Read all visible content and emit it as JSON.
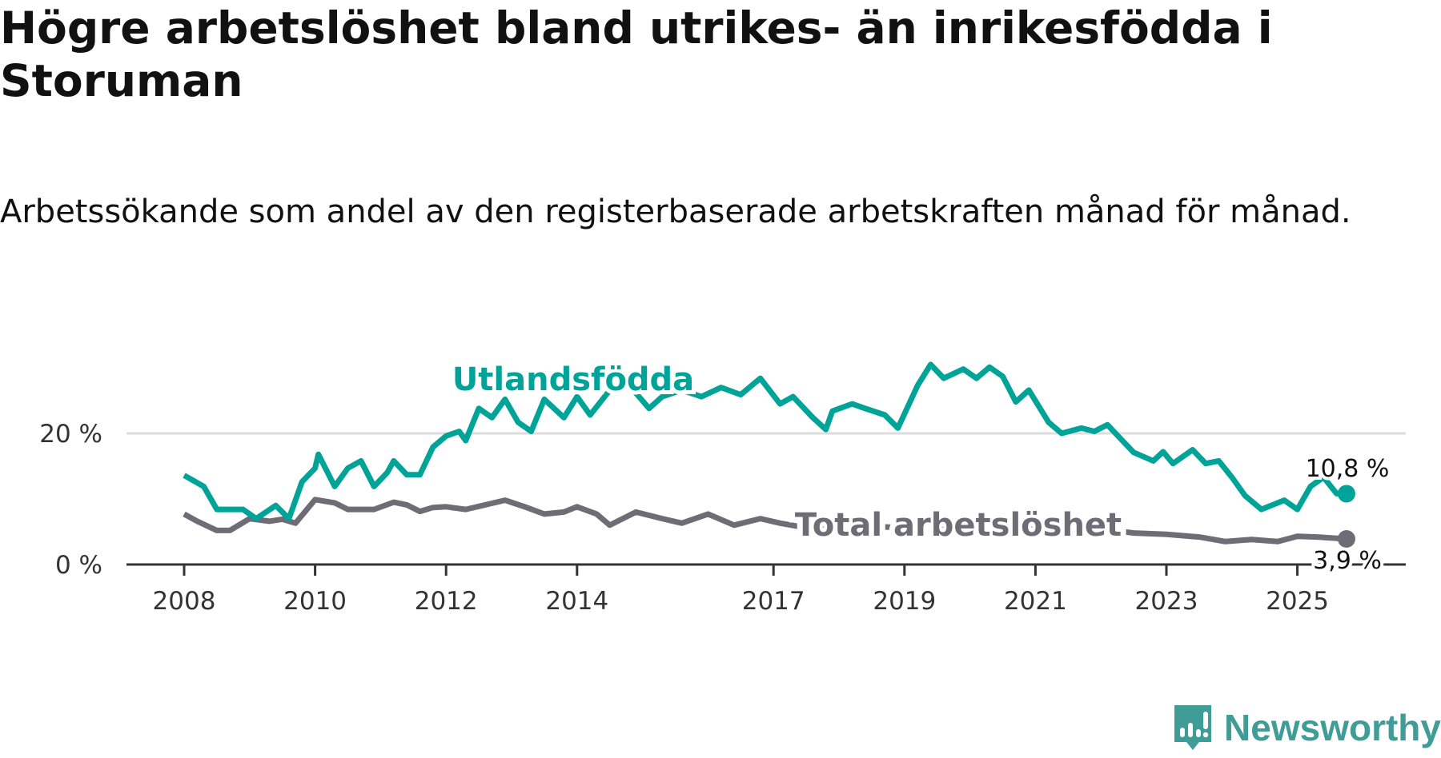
{
  "title": "Högre arbetslöshet bland utrikes- än inrikesfödda i Storuman",
  "subtitle": "Arbetssökande som andel av den registerbaserade arbetskraften månad för månad.",
  "logo_text": "Newsworthy",
  "chart_data": {
    "type": "line",
    "ylim": [
      0,
      30
    ],
    "yticks": [
      {
        "value": 0,
        "label": "0 %"
      },
      {
        "value": 20,
        "label": "20 %"
      }
    ],
    "xticks": [
      {
        "value": 2008,
        "label": "2008"
      },
      {
        "value": 2010,
        "label": "2010"
      },
      {
        "value": 2012,
        "label": "2012"
      },
      {
        "value": 2014,
        "label": "2014"
      },
      {
        "value": 2017,
        "label": "2017"
      },
      {
        "value": 2019,
        "label": "2019"
      },
      {
        "value": 2021,
        "label": "2021"
      },
      {
        "value": 2023,
        "label": "2023"
      },
      {
        "value": 2025,
        "label": "2025"
      }
    ],
    "grid": true,
    "series": [
      {
        "name": "Utlandsfödda",
        "color": "#00a398",
        "end_label": "10,8 %",
        "x": [
          2008.0,
          2008.3,
          2008.5,
          2008.9,
          2009.1,
          2009.4,
          2009.6,
          2009.8,
          2010.0,
          2010.05,
          2010.3,
          2010.5,
          2010.7,
          2010.9,
          2011.1,
          2011.2,
          2011.4,
          2011.6,
          2011.8,
          2012.0,
          2012.2,
          2012.3,
          2012.5,
          2012.7,
          2012.9,
          2013.1,
          2013.3,
          2013.5,
          2013.8,
          2014.0,
          2014.2,
          2014.5,
          2014.8,
          2015.1,
          2015.3,
          2015.6,
          2015.9,
          2016.2,
          2016.5,
          2016.8,
          2017.1,
          2017.3,
          2017.6,
          2017.8,
          2017.9,
          2018.2,
          2018.4,
          2018.7,
          2018.9,
          2019.2,
          2019.4,
          2019.6,
          2019.9,
          2020.1,
          2020.3,
          2020.5,
          2020.7,
          2020.9,
          2021.2,
          2021.4,
          2021.7,
          2021.9,
          2022.1,
          2022.3,
          2022.5,
          2022.8,
          2022.95,
          2023.1,
          2023.4,
          2023.6,
          2023.8,
          2024.0,
          2024.2,
          2024.45,
          2024.8,
          2025.0,
          2025.2,
          2025.4,
          2025.6,
          2025.75
        ],
        "y": [
          13.6,
          11.9,
          8.4,
          8.4,
          7.0,
          9.0,
          7.0,
          12.6,
          14.7,
          16.8,
          11.9,
          14.7,
          15.8,
          11.9,
          14.0,
          15.8,
          13.7,
          13.7,
          17.9,
          19.6,
          20.3,
          18.9,
          23.8,
          22.4,
          25.2,
          21.7,
          20.3,
          25.2,
          22.4,
          25.6,
          22.8,
          26.6,
          27.3,
          23.8,
          25.6,
          26.6,
          25.6,
          27.0,
          25.9,
          28.4,
          24.5,
          25.6,
          22.4,
          20.6,
          23.4,
          24.5,
          23.8,
          22.8,
          20.8,
          27.3,
          30.5,
          28.4,
          29.8,
          28.4,
          30.1,
          28.7,
          24.8,
          26.6,
          21.7,
          20.0,
          20.8,
          20.3,
          21.3,
          19.2,
          17.1,
          15.8,
          17.2,
          15.4,
          17.5,
          15.4,
          15.8,
          13.3,
          10.5,
          8.4,
          9.8,
          8.4,
          11.9,
          13.3,
          10.8,
          10.8
        ]
      },
      {
        "name": "Total arbetslöshet",
        "color": "#6e6c75",
        "end_label": "3,9 %",
        "x": [
          2008.0,
          2008.2,
          2008.5,
          2008.7,
          2009.0,
          2009.3,
          2009.5,
          2009.7,
          2010.0,
          2010.3,
          2010.5,
          2010.9,
          2011.2,
          2011.4,
          2011.6,
          2011.8,
          2012.0,
          2012.3,
          2012.6,
          2012.9,
          2013.2,
          2013.5,
          2013.8,
          2014.0,
          2014.3,
          2014.5,
          2014.9,
          2015.3,
          2015.6,
          2016.0,
          2016.4,
          2016.8,
          2017.1,
          2017.5,
          2018.0,
          2018.5,
          2019.0,
          2019.5,
          2020.0,
          2020.5,
          2021.0,
          2021.5,
          2022.0,
          2022.2,
          2022.5,
          2023.0,
          2023.5,
          2023.9,
          2024.3,
          2024.7,
          2025.0,
          2025.3,
          2025.75
        ],
        "y": [
          7.7,
          6.6,
          5.2,
          5.2,
          7.0,
          6.6,
          6.9,
          6.3,
          9.9,
          9.4,
          8.4,
          8.4,
          9.5,
          9.1,
          8.1,
          8.7,
          8.8,
          8.4,
          9.1,
          9.8,
          8.8,
          7.7,
          8.0,
          8.8,
          7.7,
          6.0,
          8.0,
          7.0,
          6.3,
          7.7,
          6.0,
          7.0,
          6.3,
          5.6,
          5.5,
          5.8,
          5.6,
          5.3,
          5.4,
          5.6,
          5.5,
          5.3,
          5.3,
          5.2,
          4.8,
          4.6,
          4.2,
          3.5,
          3.8,
          3.5,
          4.3,
          4.2,
          3.9
        ]
      }
    ]
  }
}
